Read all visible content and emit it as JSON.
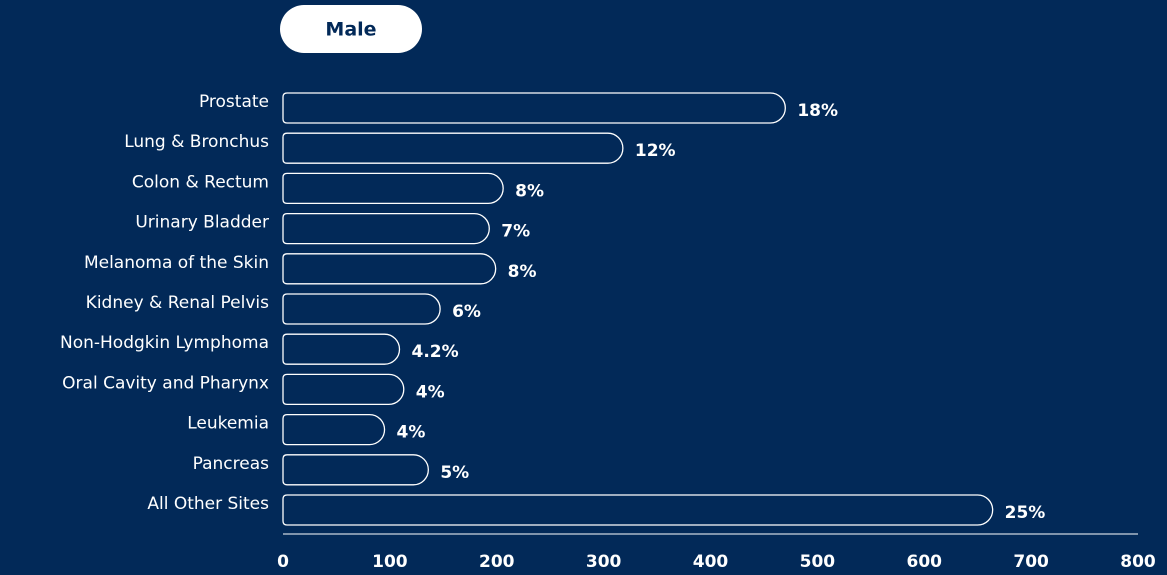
{
  "filter": {
    "label": "Male"
  },
  "chart_data": {
    "type": "hbar",
    "categories": [
      "Prostate",
      "Lung & Bronchus",
      "Colon & Rectum",
      "Urinary Bladder",
      "Melanoma of the Skin",
      "Kidney & Renal Pelvis",
      "Non-Hodgkin Lymphoma",
      "Oral Cavity and Pharynx",
      "Leukemia",
      "Pancreas",
      "All Other Sites"
    ],
    "values": [
      470,
      318,
      206,
      193,
      199,
      147,
      109,
      113,
      95,
      136,
      664
    ],
    "shares": [
      "18%",
      "12%",
      "8%",
      "7%",
      "8%",
      "6%",
      "4.2%",
      "4%",
      "4%",
      "5%",
      "25%"
    ],
    "color": "#ffffff",
    "xlim": [
      0,
      800
    ],
    "xticks": [
      0,
      100,
      200,
      300,
      400,
      500,
      600,
      700,
      800
    ],
    "grid": false
  }
}
